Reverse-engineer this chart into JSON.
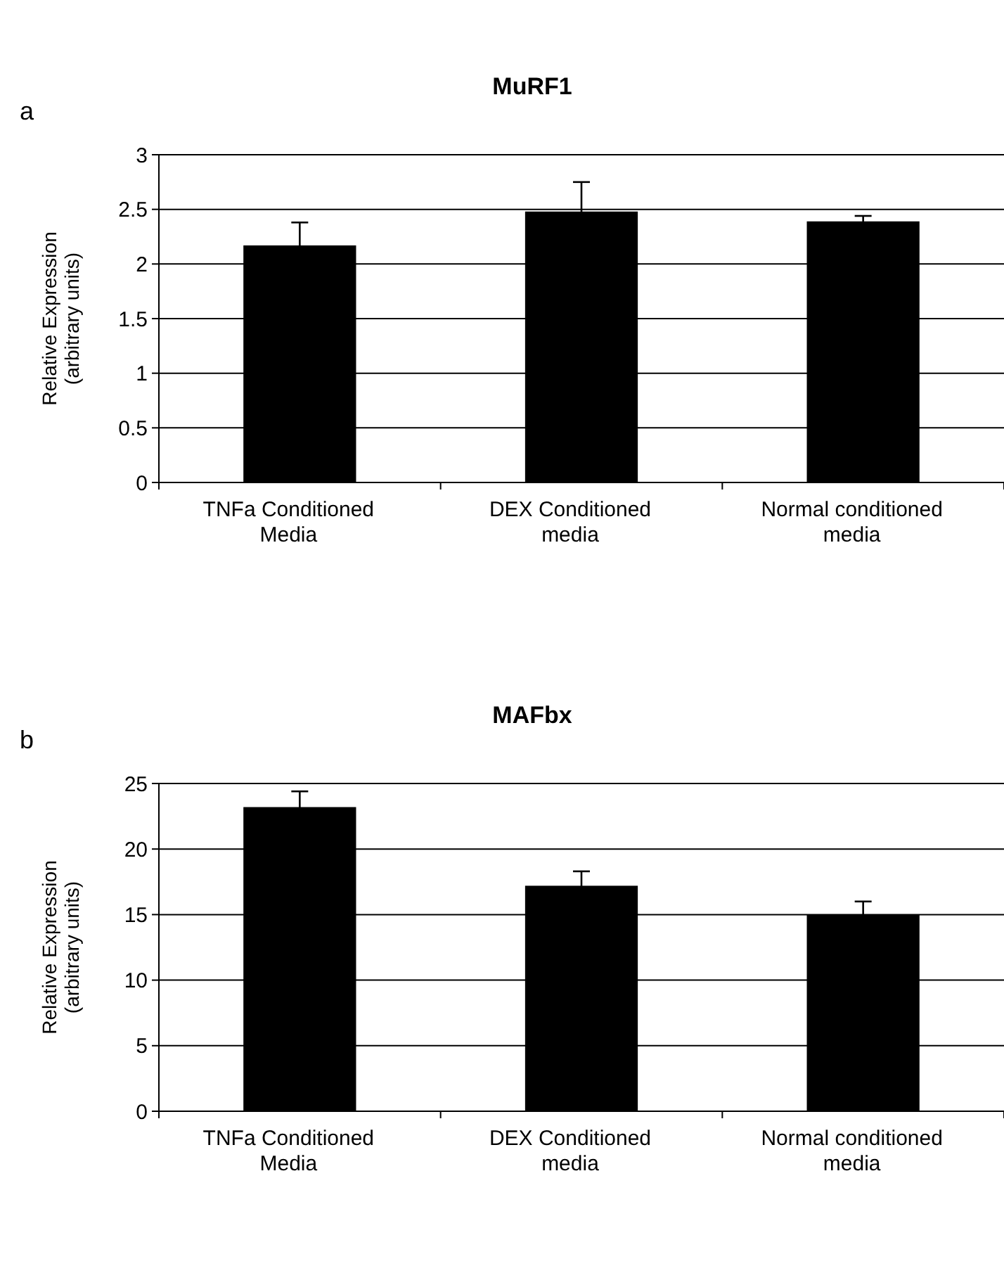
{
  "chart_data": [
    {
      "type": "bar",
      "title": "MuRF1",
      "ylabel": "Relative Expression\n(arbitrary units)",
      "annotations": [
        "a"
      ],
      "categories": [
        "TNFa Conditioned\nMedia",
        "DEX Conditioned\nmedia",
        "Normal conditioned\nmedia"
      ],
      "values": [
        2.17,
        2.48,
        2.39
      ],
      "errors": [
        0.21,
        0.27,
        0.05
      ],
      "color": "#000000",
      "ylim": [
        0,
        3
      ],
      "yticks": [
        0,
        0.5,
        1,
        1.5,
        2,
        2.5,
        3
      ],
      "grid": "y"
    },
    {
      "type": "bar",
      "title": "MAFbx",
      "ylabel": "Relative Expression\n(arbitrary units)",
      "annotations": [
        "b"
      ],
      "categories": [
        "TNFa Conditioned\nMedia",
        "DEX Conditioned\nmedia",
        "Normal conditioned\nmedia"
      ],
      "values": [
        23.2,
        17.2,
        15.0
      ],
      "errors": [
        1.2,
        1.1,
        1.0
      ],
      "color": "#000000",
      "ylim": [
        0,
        25
      ],
      "yticks": [
        0,
        5,
        10,
        15,
        20,
        25
      ],
      "grid": "y"
    }
  ]
}
